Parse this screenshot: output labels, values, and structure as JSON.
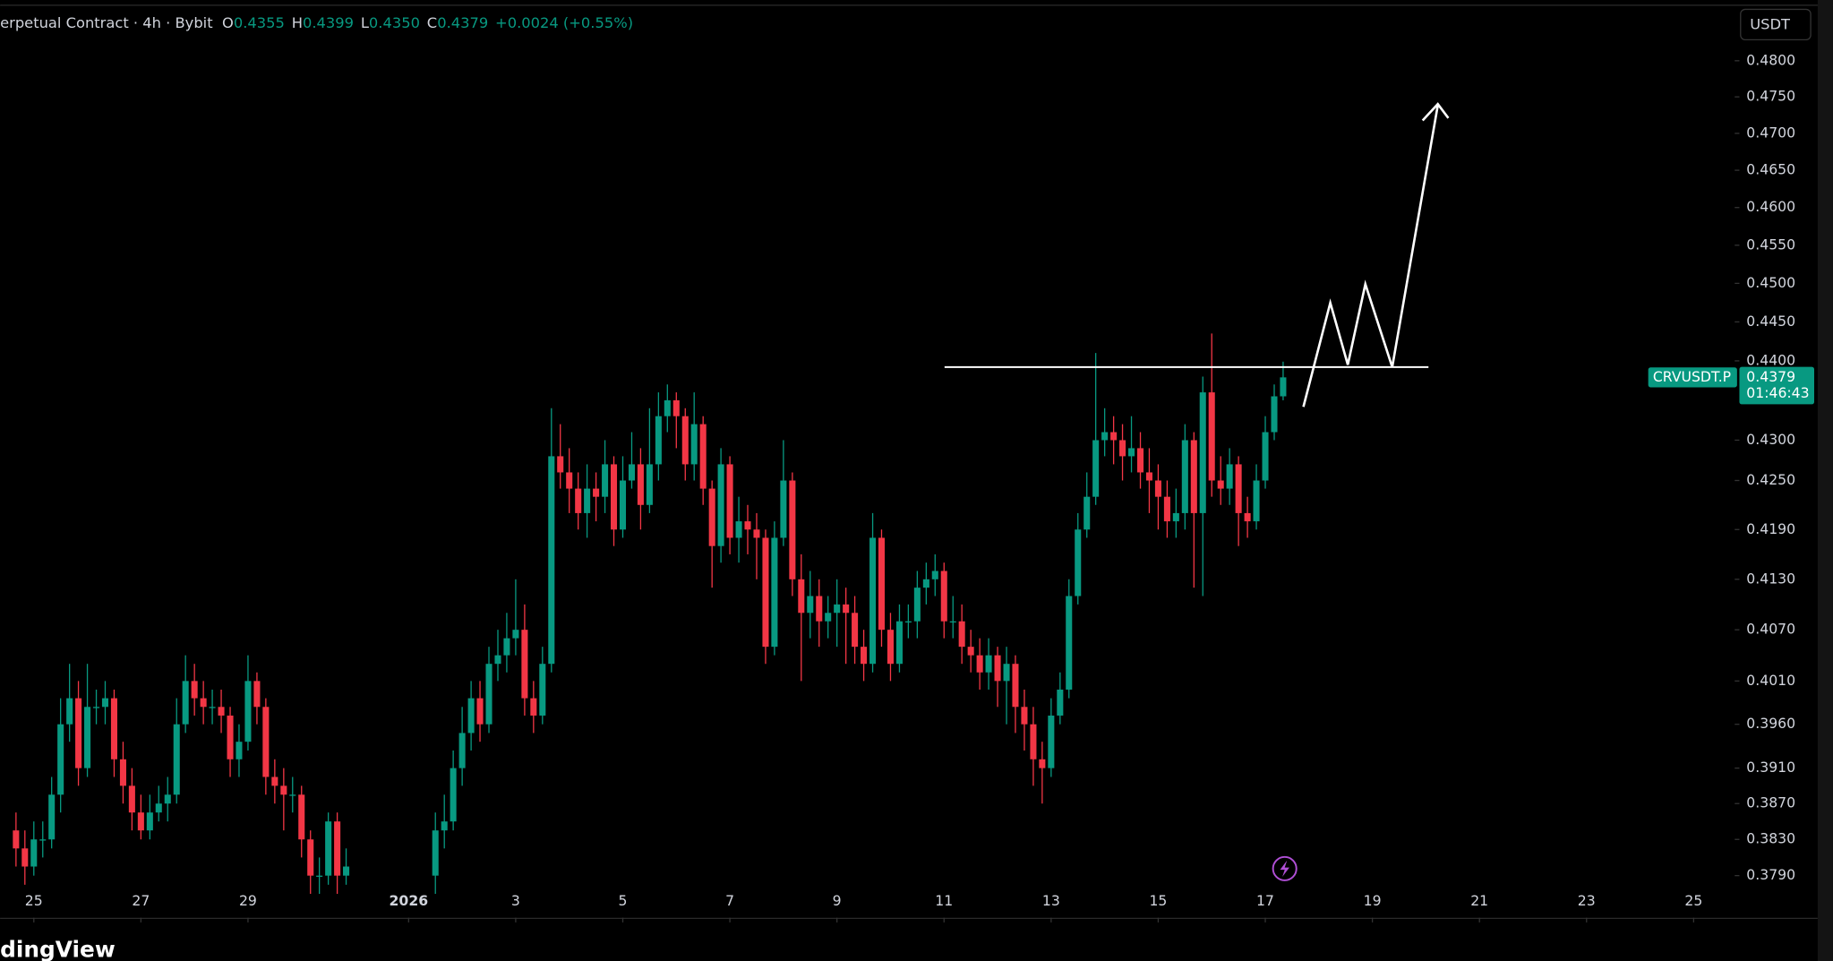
{
  "legend": {
    "text": "erpetual Contract · 4h · Bybit",
    "fields": [
      {
        "label": "O",
        "value": "0.4355"
      },
      {
        "label": "H",
        "value": "0.4399"
      },
      {
        "label": "L",
        "value": "0.4350"
      },
      {
        "label": "C",
        "value": "0.4379"
      }
    ],
    "change": "+0.0024 (+0.55%)"
  },
  "currency_button": "USDT",
  "countdown": "01:46:43",
  "footer": "dingView",
  "chart_data": {
    "type": "candlestick",
    "symbol": "CRVUSDT.P",
    "log_scale": true,
    "up_color": "#089981",
    "down_color": "#f23645",
    "xlim": [
      -0.63,
      31.68
    ],
    "ylim": [
      0.3744,
      0.4877
    ],
    "xticks": [
      {
        "value": 0,
        "label": "25"
      },
      {
        "value": 2,
        "label": "27"
      },
      {
        "value": 4,
        "label": "29"
      },
      {
        "value": 7,
        "label": "2026"
      },
      {
        "value": 9,
        "label": "3"
      },
      {
        "value": 11,
        "label": "5"
      },
      {
        "value": 13,
        "label": "7"
      },
      {
        "value": 15,
        "label": "9"
      },
      {
        "value": 17,
        "label": "11"
      },
      {
        "value": 19,
        "label": "13"
      },
      {
        "value": 21,
        "label": "15"
      },
      {
        "value": 23,
        "label": "17"
      },
      {
        "value": 25,
        "label": "19"
      },
      {
        "value": 27,
        "label": "21"
      },
      {
        "value": 29,
        "label": "23"
      },
      {
        "value": 31,
        "label": "25"
      }
    ],
    "yticks": [
      {
        "value": 0.48,
        "label": "0.4800"
      },
      {
        "value": 0.475,
        "label": "0.4750"
      },
      {
        "value": 0.47,
        "label": "0.4700"
      },
      {
        "value": 0.465,
        "label": "0.4650"
      },
      {
        "value": 0.46,
        "label": "0.4600"
      },
      {
        "value": 0.455,
        "label": "0.4550"
      },
      {
        "value": 0.45,
        "label": "0.4500"
      },
      {
        "value": 0.445,
        "label": "0.4450"
      },
      {
        "value": 0.44,
        "label": "0.4400"
      },
      {
        "value": 0.43,
        "label": "0.4300"
      },
      {
        "value": 0.425,
        "label": "0.4250"
      },
      {
        "value": 0.419,
        "label": "0.4190"
      },
      {
        "value": 0.413,
        "label": "0.4130"
      },
      {
        "value": 0.407,
        "label": "0.4070"
      },
      {
        "value": 0.401,
        "label": "0.4010"
      },
      {
        "value": 0.396,
        "label": "0.3960"
      },
      {
        "value": 0.391,
        "label": "0.3910"
      },
      {
        "value": 0.387,
        "label": "0.3870"
      },
      {
        "value": 0.383,
        "label": "0.3830"
      },
      {
        "value": 0.379,
        "label": "0.3790"
      }
    ],
    "x": [
      -0.333,
      -0.167,
      0,
      0.167,
      0.333,
      0.5,
      0.667,
      0.833,
      1,
      1.167,
      1.333,
      1.5,
      1.667,
      1.833,
      2,
      2.167,
      2.333,
      2.5,
      2.667,
      2.833,
      3,
      3.167,
      3.333,
      3.5,
      3.667,
      3.833,
      4,
      4.167,
      4.333,
      4.5,
      4.667,
      4.833,
      5,
      5.167,
      5.333,
      5.5,
      5.667,
      5.833,
      7.5,
      7.667,
      7.833,
      8,
      8.167,
      8.333,
      8.5,
      8.667,
      8.833,
      9,
      9.167,
      9.333,
      9.5,
      9.667,
      9.833,
      10,
      10.167,
      10.333,
      10.5,
      10.667,
      10.833,
      11,
      11.167,
      11.333,
      11.5,
      11.667,
      11.833,
      12,
      12.167,
      12.333,
      12.5,
      12.667,
      12.833,
      13,
      13.167,
      13.333,
      13.5,
      13.667,
      13.833,
      14,
      14.167,
      14.333,
      14.5,
      14.667,
      14.833,
      15,
      15.167,
      15.333,
      15.5,
      15.667,
      15.833,
      16,
      16.167,
      16.333,
      16.5,
      16.667,
      16.833,
      17,
      17.167,
      17.333,
      17.5,
      17.667,
      17.833,
      18,
      18.167,
      18.333,
      18.5,
      18.667,
      18.833,
      19,
      19.167,
      19.333,
      19.5,
      19.667,
      19.833,
      20,
      20.167,
      20.333,
      20.5,
      20.667,
      20.833,
      21,
      21.167,
      21.333,
      21.5,
      21.667,
      21.833,
      22,
      22.167,
      22.333,
      22.5,
      22.667,
      22.833,
      23,
      23.167,
      23.333
    ],
    "open": [
      0.384,
      0.382,
      0.38,
      0.383,
      0.383,
      0.388,
      0.396,
      0.399,
      0.391,
      0.398,
      0.398,
      0.399,
      0.392,
      0.389,
      0.386,
      0.384,
      0.386,
      0.387,
      0.388,
      0.396,
      0.401,
      0.399,
      0.398,
      0.398,
      0.397,
      0.392,
      0.394,
      0.401,
      0.398,
      0.39,
      0.389,
      0.388,
      0.388,
      0.383,
      0.379,
      0.379,
      0.385,
      0.379,
      0.379,
      0.384,
      0.385,
      0.391,
      0.395,
      0.399,
      0.396,
      0.403,
      0.404,
      0.406,
      0.407,
      0.399,
      0.397,
      0.403,
      0.428,
      0.426,
      0.424,
      0.421,
      0.424,
      0.423,
      0.427,
      0.419,
      0.425,
      0.427,
      0.422,
      0.427,
      0.433,
      0.435,
      0.433,
      0.427,
      0.432,
      0.424,
      0.417,
      0.427,
      0.418,
      0.42,
      0.419,
      0.418,
      0.405,
      0.418,
      0.425,
      0.413,
      0.409,
      0.411,
      0.408,
      0.409,
      0.41,
      0.409,
      0.405,
      0.403,
      0.418,
      0.407,
      0.403,
      0.408,
      0.408,
      0.412,
      0.413,
      0.414,
      0.408,
      0.408,
      0.405,
      0.404,
      0.402,
      0.404,
      0.401,
      0.403,
      0.398,
      0.396,
      0.392,
      0.391,
      0.397,
      0.4,
      0.411,
      0.419,
      0.423,
      0.43,
      0.431,
      0.43,
      0.428,
      0.429,
      0.426,
      0.425,
      0.423,
      0.42,
      0.421,
      0.43,
      0.421,
      0.436,
      0.425,
      0.424,
      0.427,
      0.421,
      0.42,
      0.425,
      0.431,
      0.4355
    ],
    "high": [
      0.386,
      0.384,
      0.385,
      0.385,
      0.39,
      0.399,
      0.403,
      0.401,
      0.403,
      0.4,
      0.401,
      0.4,
      0.394,
      0.391,
      0.388,
      0.388,
      0.389,
      0.39,
      0.399,
      0.404,
      0.403,
      0.401,
      0.4,
      0.4,
      0.398,
      0.396,
      0.404,
      0.402,
      0.399,
      0.392,
      0.391,
      0.39,
      0.389,
      0.384,
      0.381,
      0.386,
      0.386,
      0.382,
      0.386,
      0.388,
      0.393,
      0.398,
      0.401,
      0.401,
      0.405,
      0.407,
      0.409,
      0.413,
      0.41,
      0.401,
      0.405,
      0.434,
      0.432,
      0.429,
      0.426,
      0.427,
      0.426,
      0.43,
      0.428,
      0.428,
      0.431,
      0.429,
      0.434,
      0.436,
      0.437,
      0.436,
      0.434,
      0.436,
      0.433,
      0.425,
      0.429,
      0.428,
      0.423,
      0.422,
      0.421,
      0.419,
      0.42,
      0.43,
      0.426,
      0.416,
      0.414,
      0.413,
      0.411,
      0.413,
      0.412,
      0.411,
      0.407,
      0.421,
      0.419,
      0.409,
      0.41,
      0.41,
      0.414,
      0.415,
      0.416,
      0.415,
      0.411,
      0.41,
      0.407,
      0.406,
      0.406,
      0.405,
      0.405,
      0.404,
      0.4,
      0.398,
      0.394,
      0.399,
      0.402,
      0.413,
      0.421,
      0.426,
      0.441,
      0.434,
      0.433,
      0.432,
      0.433,
      0.431,
      0.429,
      0.427,
      0.425,
      0.424,
      0.432,
      0.431,
      0.438,
      0.4435,
      0.428,
      0.429,
      0.428,
      0.423,
      0.427,
      0.433,
      0.437,
      0.4399
    ],
    "low": [
      0.38,
      0.378,
      0.379,
      0.381,
      0.382,
      0.386,
      0.394,
      0.389,
      0.39,
      0.396,
      0.396,
      0.39,
      0.387,
      0.384,
      0.383,
      0.383,
      0.385,
      0.385,
      0.387,
      0.395,
      0.397,
      0.396,
      0.396,
      0.395,
      0.39,
      0.39,
      0.393,
      0.396,
      0.388,
      0.387,
      0.384,
      0.386,
      0.381,
      0.377,
      0.377,
      0.378,
      0.377,
      0.378,
      0.377,
      0.382,
      0.384,
      0.389,
      0.393,
      0.394,
      0.395,
      0.401,
      0.402,
      0.404,
      0.397,
      0.395,
      0.396,
      0.402,
      0.424,
      0.421,
      0.419,
      0.418,
      0.42,
      0.421,
      0.417,
      0.418,
      0.424,
      0.419,
      0.421,
      0.425,
      0.431,
      0.429,
      0.425,
      0.425,
      0.422,
      0.412,
      0.415,
      0.416,
      0.415,
      0.416,
      0.413,
      0.403,
      0.404,
      0.417,
      0.411,
      0.401,
      0.406,
      0.405,
      0.406,
      0.405,
      0.403,
      0.403,
      0.401,
      0.402,
      0.405,
      0.401,
      0.402,
      0.406,
      0.406,
      0.41,
      0.411,
      0.406,
      0.406,
      0.403,
      0.402,
      0.4,
      0.4,
      0.398,
      0.396,
      0.395,
      0.393,
      0.389,
      0.387,
      0.39,
      0.396,
      0.399,
      0.41,
      0.418,
      0.422,
      0.428,
      0.427,
      0.425,
      0.426,
      0.424,
      0.421,
      0.419,
      0.418,
      0.418,
      0.419,
      0.412,
      0.411,
      0.423,
      0.422,
      0.422,
      0.417,
      0.418,
      0.419,
      0.424,
      0.43,
      0.435
    ],
    "close": [
      0.382,
      0.38,
      0.383,
      0.383,
      0.388,
      0.396,
      0.399,
      0.391,
      0.398,
      0.398,
      0.399,
      0.392,
      0.389,
      0.386,
      0.384,
      0.386,
      0.387,
      0.388,
      0.396,
      0.401,
      0.399,
      0.398,
      0.398,
      0.397,
      0.392,
      0.394,
      0.401,
      0.398,
      0.39,
      0.389,
      0.388,
      0.388,
      0.383,
      0.379,
      0.379,
      0.385,
      0.379,
      0.38,
      0.384,
      0.385,
      0.391,
      0.395,
      0.399,
      0.396,
      0.403,
      0.404,
      0.406,
      0.407,
      0.399,
      0.397,
      0.403,
      0.428,
      0.426,
      0.424,
      0.421,
      0.424,
      0.423,
      0.427,
      0.419,
      0.425,
      0.427,
      0.422,
      0.427,
      0.433,
      0.435,
      0.433,
      0.427,
      0.432,
      0.424,
      0.417,
      0.427,
      0.418,
      0.42,
      0.419,
      0.418,
      0.405,
      0.418,
      0.425,
      0.413,
      0.409,
      0.411,
      0.408,
      0.409,
      0.41,
      0.409,
      0.405,
      0.403,
      0.418,
      0.407,
      0.403,
      0.408,
      0.408,
      0.412,
      0.413,
      0.414,
      0.408,
      0.408,
      0.405,
      0.404,
      0.402,
      0.404,
      0.401,
      0.403,
      0.398,
      0.396,
      0.392,
      0.391,
      0.397,
      0.4,
      0.411,
      0.419,
      0.423,
      0.43,
      0.431,
      0.43,
      0.428,
      0.429,
      0.426,
      0.425,
      0.423,
      0.42,
      0.421,
      0.43,
      0.421,
      0.436,
      0.425,
      0.424,
      0.427,
      0.421,
      0.42,
      0.425,
      0.431,
      0.4355,
      0.4379
    ]
  }
}
